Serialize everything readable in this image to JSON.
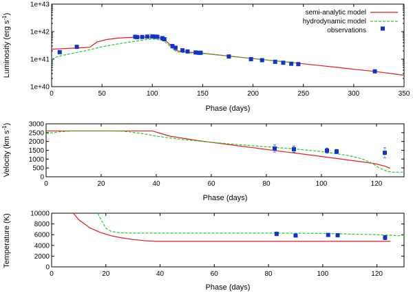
{
  "colors": {
    "model": "#e41a1c",
    "hydro": "#22cc22",
    "obs": "#1133cc"
  },
  "legend": {
    "semi_analytic": "semi-analytic model",
    "hydrodynamic": "hydrodynamic model",
    "observations": "observations"
  },
  "chart_data": [
    {
      "type": "line",
      "id": "lum",
      "xlabel": "Phase (days)",
      "ylabel": "Luminosity (erg s",
      "ylabel_sup": "-1",
      "ylabel_end": ")",
      "yscale": "log",
      "xlim": [
        0,
        350
      ],
      "ylim": [
        1e+40,
        1e+43
      ],
      "xticks": [
        0,
        50,
        100,
        150,
        200,
        250,
        300,
        350
      ],
      "yticks": [
        1e+40,
        1e+41,
        1e+42,
        1e+43
      ],
      "yticklabels": [
        "1e+40",
        "1e+41",
        "1e+42",
        "1e+43"
      ],
      "series": [
        {
          "name": "semi-analytic model",
          "x": [
            0,
            10,
            20,
            30,
            38,
            45,
            55,
            65,
            75,
            85,
            95,
            100,
            105,
            110,
            113,
            116,
            119,
            122,
            125,
            130,
            140,
            150,
            160,
            180,
            200,
            220,
            240,
            260,
            280,
            300,
            320,
            340,
            350
          ],
          "y": [
            2.3e+41,
            2.4e+41,
            2.5e+41,
            2.6e+41,
            2.7e+41,
            4.2e+41,
            5.2e+41,
            5.8e+41,
            6.1e+41,
            6.3e+41,
            6.4e+41,
            6.4e+41,
            6.2e+41,
            5.6e+41,
            4.8e+41,
            3.8e+41,
            3e+41,
            2.4e+41,
            2e+41,
            1.9e+41,
            1.75e+41,
            1.65e+41,
            1.5e+41,
            1.25e+41,
            1.05e+41,
            8.8e+40,
            7.4e+40,
            6.2e+40,
            5.2e+40,
            4.3e+40,
            3.6e+40,
            2.9e+40,
            2.6e+40
          ]
        },
        {
          "name": "hydrodynamic model",
          "x": [
            0,
            5,
            10,
            20,
            30,
            40,
            50,
            60,
            70,
            80,
            90,
            95,
            100,
            105,
            110,
            113,
            116,
            119,
            122,
            125,
            130,
            150,
            175,
            200,
            225,
            245
          ],
          "y": [
            1e+41,
            1.2e+41,
            1.35e+41,
            1.6e+41,
            1.9e+41,
            2.3e+41,
            2.8e+41,
            3.3e+41,
            3.8e+41,
            4.3e+41,
            4.9e+41,
            5.2e+41,
            5.4e+41,
            5.2e+41,
            4.8e+41,
            4.1e+41,
            3.3e+41,
            2.6e+41,
            2.1e+41,
            1.8e+41,
            1.75e+41,
            1.6e+41,
            1.3e+41,
            1.05e+41,
            8.5e+40,
            7e+40
          ]
        }
      ],
      "observations": {
        "name": "observations",
        "x": [
          8,
          25,
          83,
          85,
          90,
          95,
          100,
          103,
          105,
          110,
          112,
          120,
          123,
          130,
          135,
          143,
          146,
          148,
          176,
          198,
          209,
          222,
          230,
          238,
          245,
          321
        ],
        "y": [
          1.8e+41,
          2.8e+41,
          6.5e+41,
          6.3e+41,
          6.4e+41,
          6.6e+41,
          6.7e+41,
          6.6e+41,
          6.5e+41,
          5.8e+41,
          5.3e+41,
          3e+41,
          2.6e+41,
          2.1e+41,
          1.9e+41,
          1.75e+41,
          1.7e+41,
          1.7e+41,
          1.25e+41,
          1e+41,
          9.2e+40,
          8e+40,
          7.4e+40,
          6.8e+40,
          6.6e+40,
          3.6e+40
        ]
      }
    },
    {
      "type": "line",
      "id": "vel",
      "xlabel": "Phase (days)",
      "ylabel": "Velocity (km s",
      "ylabel_sup": "-1",
      "ylabel_end": ")",
      "yscale": "linear",
      "xlim": [
        0,
        130
      ],
      "ylim": [
        0,
        3000
      ],
      "xticks": [
        0,
        20,
        40,
        60,
        80,
        100,
        120
      ],
      "yticks": [
        0,
        500,
        1000,
        1500,
        2000,
        2500,
        3000
      ],
      "yticklabels": [
        "0",
        "500",
        "1000",
        "1500",
        "2000",
        "2500",
        "3000"
      ],
      "series": [
        {
          "name": "semi-analytic model",
          "x": [
            0,
            5,
            10,
            20,
            30,
            38.5,
            45,
            55,
            65,
            75,
            85,
            95,
            105,
            112,
            117,
            120,
            123,
            125
          ],
          "y": [
            2600,
            2600,
            2600,
            2600,
            2600,
            2600,
            2300,
            2050,
            1850,
            1650,
            1450,
            1250,
            1050,
            900,
            800,
            720,
            600,
            480
          ]
        },
        {
          "name": "hydrodynamic model",
          "x": [
            0,
            5,
            10,
            20,
            28,
            35,
            40,
            50,
            60,
            70,
            80,
            90,
            100,
            110,
            115,
            118,
            121,
            124,
            126,
            130
          ],
          "y": [
            2450,
            2550,
            2600,
            2600,
            2580,
            2450,
            2300,
            2100,
            1950,
            1820,
            1700,
            1580,
            1430,
            1200,
            1000,
            800,
            500,
            300,
            260,
            260
          ]
        }
      ],
      "observations": {
        "name": "observations",
        "x": [
          83,
          90,
          102,
          105.5,
          123
        ],
        "y": [
          1600,
          1560,
          1480,
          1430,
          1360
        ],
        "err": [
          200,
          180,
          150,
          120,
          280
        ]
      }
    },
    {
      "type": "line",
      "id": "temp",
      "xlabel": "Phase (days)",
      "ylabel": "Temperature (K)",
      "yscale": "linear",
      "xlim": [
        0,
        130
      ],
      "ylim": [
        0,
        10000
      ],
      "xticks": [
        0,
        20,
        40,
        60,
        80,
        100,
        120
      ],
      "yticks": [
        0,
        2000,
        4000,
        6000,
        8000,
        10000
      ],
      "yticklabels": [
        "0",
        "2000",
        "4000",
        "6000",
        "8000",
        "10000"
      ],
      "series": [
        {
          "name": "semi-analytic model",
          "x": [
            8,
            10,
            14,
            18,
            22,
            26,
            30,
            34,
            38.5,
            50,
            70,
            90,
            110,
            125
          ],
          "y": [
            10000,
            8800,
            7300,
            6400,
            5800,
            5400,
            5100,
            4900,
            4750,
            4750,
            4750,
            4750,
            4750,
            4750
          ]
        },
        {
          "name": "hydrodynamic model",
          "x": [
            17,
            18,
            20,
            22,
            25,
            30,
            40,
            60,
            80,
            100,
            110,
            120,
            125,
            128,
            130
          ],
          "y": [
            10000,
            9000,
            7200,
            6600,
            6350,
            6300,
            6300,
            6300,
            6300,
            6250,
            6100,
            6000,
            5900,
            5800,
            5950
          ]
        }
      ],
      "observations": {
        "name": "observations",
        "x": [
          83,
          90,
          102,
          105.5,
          123
        ],
        "y": [
          6150,
          5850,
          5950,
          5900,
          5450
        ],
        "err": [
          350,
          250,
          300,
          250,
          400
        ]
      }
    }
  ]
}
